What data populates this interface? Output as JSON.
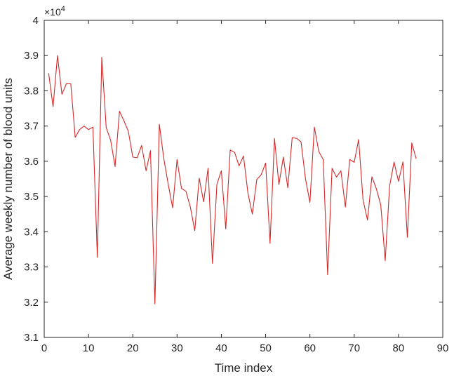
{
  "chart_data": {
    "type": "line",
    "title": "",
    "xlabel": "Time index",
    "ylabel": "Average weekly number of blood units",
    "y_exponent_base": "×10",
    "y_exponent_power": "4",
    "xlim": [
      0,
      90
    ],
    "ylim": [
      3.1,
      4.0
    ],
    "xticks": [
      "0",
      "10",
      "20",
      "30",
      "40",
      "50",
      "60",
      "70",
      "80",
      "90"
    ],
    "yticks": [
      "3.1",
      "3.2",
      "3.3",
      "3.4",
      "3.5",
      "3.6",
      "3.7",
      "3.8",
      "3.9",
      "4"
    ],
    "grid": false,
    "series": [
      {
        "color": "#d62728",
        "x": [
          1,
          2,
          3,
          4,
          5,
          6,
          7,
          8,
          9,
          10,
          11,
          12,
          13,
          14,
          15,
          16,
          17,
          18,
          19,
          20,
          21,
          22,
          23,
          24,
          25,
          26,
          27,
          28,
          29,
          30,
          31,
          32,
          33,
          34,
          35,
          36,
          37,
          38,
          39,
          40,
          41,
          42,
          43,
          44,
          45,
          46,
          47,
          48,
          49,
          50,
          51,
          52,
          53,
          54,
          55,
          56,
          57,
          58,
          59,
          60,
          61,
          62,
          63,
          64,
          65,
          66,
          67,
          68,
          69,
          70,
          71,
          72,
          73,
          74,
          75,
          76,
          77,
          78,
          79,
          80,
          81,
          82,
          83,
          84
        ],
        "values": [
          3.85,
          3.755,
          3.9,
          3.79,
          3.82,
          3.82,
          3.668,
          3.69,
          3.7,
          3.69,
          3.697,
          3.327,
          3.895,
          3.695,
          3.66,
          3.585,
          3.742,
          3.715,
          3.685,
          3.612,
          3.61,
          3.645,
          3.573,
          3.63,
          3.195,
          3.705,
          3.608,
          3.535,
          3.468,
          3.605,
          3.523,
          3.515,
          3.47,
          3.403,
          3.552,
          3.485,
          3.58,
          3.31,
          3.535,
          3.573,
          3.408,
          3.632,
          3.625,
          3.587,
          3.615,
          3.51,
          3.45,
          3.548,
          3.562,
          3.595,
          3.367,
          3.665,
          3.534,
          3.612,
          3.525,
          3.667,
          3.665,
          3.655,
          3.55,
          3.483,
          3.697,
          3.628,
          3.605,
          3.278,
          3.58,
          3.555,
          3.573,
          3.47,
          3.605,
          3.597,
          3.662,
          3.49,
          3.433,
          3.556,
          3.522,
          3.476,
          3.318,
          3.53,
          3.598,
          3.543,
          3.598,
          3.384,
          3.652,
          3.607
        ]
      }
    ]
  }
}
